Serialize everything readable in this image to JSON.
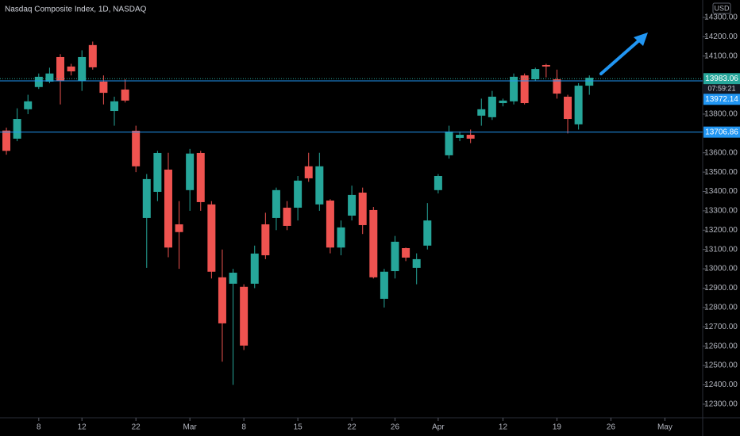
{
  "chart_data": {
    "type": "candlestick",
    "title": "Nasdaq Composite Index, 1D, NASDAQ",
    "currency": "USD",
    "countdown": "07:59:21",
    "up_color": "#26a69a",
    "down_color": "#ef5350",
    "open": [
      13715,
      13673,
      13825,
      13940,
      13968,
      14095,
      14046,
      13972,
      14157,
      13968,
      13816,
      13927,
      13714,
      13263,
      13398,
      13513,
      13230,
      13407,
      13599,
      13333,
      12956,
      12923,
      12907,
      12923,
      13230,
      13263,
      13316,
      13316,
      13530,
      13333,
      13353,
      13110,
      13275,
      13394,
      13304,
      12845,
      12988,
      13107,
      13005,
      13120,
      13407,
      13587,
      13677,
      13693,
      13792,
      13784,
      13857,
      13866,
      14000,
      13980,
      14054,
      13980,
      13890,
      13747,
      13947
    ],
    "high": [
      13730,
      13830,
      13900,
      14010,
      14040,
      14110,
      14060,
      14130,
      14175,
      14000,
      13890,
      13980,
      13740,
      13490,
      13610,
      13600,
      13350,
      13620,
      13610,
      13350,
      13100,
      13000,
      12920,
      13120,
      13290,
      13420,
      13350,
      13480,
      13600,
      13600,
      13360,
      13250,
      13430,
      13420,
      13320,
      13000,
      13170,
      13110,
      13080,
      13340,
      13490,
      13740,
      13710,
      13720,
      13880,
      13920,
      13880,
      14010,
      14010,
      14040,
      14060,
      14030,
      13900,
      13960,
      14000
    ],
    "low": [
      13590,
      13660,
      13800,
      13930,
      13960,
      13850,
      14000,
      13920,
      14030,
      13850,
      13740,
      13860,
      13500,
      13005,
      13350,
      13060,
      13000,
      13300,
      13300,
      12950,
      12520,
      12400,
      12580,
      12900,
      13050,
      13200,
      13200,
      13250,
      13450,
      13300,
      13080,
      13070,
      13250,
      13180,
      12950,
      12800,
      12950,
      13040,
      12920,
      13100,
      13390,
      13570,
      13660,
      13650,
      13740,
      13770,
      13840,
      13850,
      13850,
      13970,
      13990,
      13880,
      13700,
      13720,
      13900
    ],
    "close": [
      13610,
      13775,
      13866,
      13993,
      14010,
      13972,
      14021,
      14095,
      14042,
      13910,
      13866,
      13870,
      13530,
      13464,
      13599,
      13110,
      13190,
      13596,
      13345,
      12985,
      12718,
      12980,
      12603,
      13079,
      13070,
      13407,
      13222,
      13456,
      13468,
      13530,
      13110,
      13214,
      13382,
      13226,
      12956,
      12985,
      13140,
      13058,
      13050,
      13250,
      13480,
      13710,
      13693,
      13673,
      13825,
      13890,
      13870,
      13993,
      13857,
      14033,
      14046,
      13906,
      13775,
      13947,
      13988
    ],
    "price_lines": [
      {
        "value": 13983.06,
        "color": "#26a69a",
        "dash": true
      },
      {
        "value": 13972.14,
        "color": "#2196f3",
        "dash": false
      },
      {
        "value": 13706.86,
        "color": "#2196f3",
        "dash": false
      }
    ],
    "xlim": [
      -0.59,
      64.5
    ],
    "xticks": [
      {
        "value": 3,
        "label": "8"
      },
      {
        "value": 7,
        "label": "12"
      },
      {
        "value": 12,
        "label": "22"
      },
      {
        "value": 17,
        "label": "Mar"
      },
      {
        "value": 22,
        "label": "8"
      },
      {
        "value": 27,
        "label": "15"
      },
      {
        "value": 32,
        "label": "22"
      },
      {
        "value": 36,
        "label": "26"
      },
      {
        "value": 40,
        "label": "Apr"
      },
      {
        "value": 46,
        "label": "12"
      },
      {
        "value": 51,
        "label": "19"
      },
      {
        "value": 56,
        "label": "26"
      },
      {
        "value": 61,
        "label": "May"
      }
    ],
    "ylim": [
      12238,
      14390
    ],
    "yticks": [
      {
        "value": 14300,
        "label": "14300.00"
      },
      {
        "value": 14200,
        "label": "14200.00"
      },
      {
        "value": 14100,
        "label": "14100.00"
      },
      {
        "value": 13800,
        "label": "13800.00"
      },
      {
        "value": 13600,
        "label": "13600.00"
      },
      {
        "value": 13500,
        "label": "13500.00"
      },
      {
        "value": 13400,
        "label": "13400.00"
      },
      {
        "value": 13300,
        "label": "13300.00"
      },
      {
        "value": 13200,
        "label": "13200.00"
      },
      {
        "value": 13100,
        "label": "13100.00"
      },
      {
        "value": 13000,
        "label": "13000.00"
      },
      {
        "value": 12900,
        "label": "12900.00"
      },
      {
        "value": 12800,
        "label": "12800.00"
      },
      {
        "value": 12700,
        "label": "12700.00"
      },
      {
        "value": 12600,
        "label": "12600.00"
      },
      {
        "value": 12500,
        "label": "12500.00"
      },
      {
        "value": 12400,
        "label": "12400.00"
      },
      {
        "value": 12300,
        "label": "12300.00"
      }
    ]
  }
}
